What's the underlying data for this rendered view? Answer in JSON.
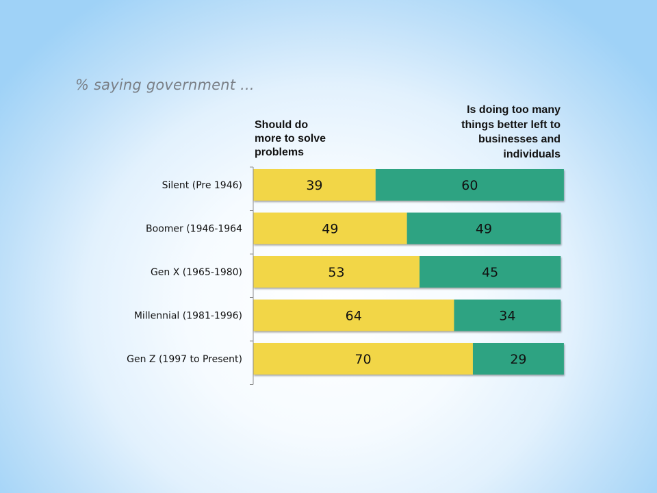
{
  "chart_data": {
    "type": "bar",
    "orientation": "horizontal",
    "stacked": true,
    "title": "% saying government ...",
    "categories": [
      "Silent (Pre 1946)",
      "Boomer (1946-1964",
      "Gen X (1965-1980)",
      "Millennial (1981-1996)",
      "Gen Z (1997 to Present)"
    ],
    "series": [
      {
        "name": "Should do more to solve problems",
        "legend_lines": [
          "Should do",
          "more to solve",
          "problems"
        ],
        "color": "#f2d647",
        "values": [
          39,
          49,
          53,
          64,
          70
        ]
      },
      {
        "name": "Is doing too many things better left to businesses and individuals",
        "legend_lines": [
          "Is doing too many",
          "things better left to",
          "businesses and",
          "individuals"
        ],
        "color": "#2fa382",
        "values": [
          60,
          49,
          45,
          34,
          29
        ]
      }
    ],
    "xlim": [
      0,
      100
    ],
    "grid": false,
    "legend": "top"
  }
}
